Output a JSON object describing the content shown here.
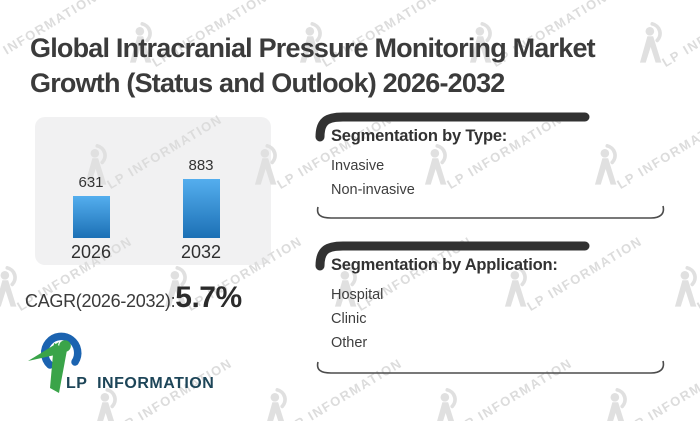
{
  "title": {
    "line1": "Global Intracranial Pressure Monitoring Market",
    "line2": "Growth (Status and Outlook) 2026-2032"
  },
  "chart_data": {
    "type": "bar",
    "categories": [
      "2026",
      "2032"
    ],
    "values": [
      631,
      883
    ],
    "title": "",
    "xlabel": "",
    "ylabel": "",
    "data_labels": [
      "631",
      "883"
    ],
    "legend": [],
    "grid": false,
    "bar_color_top": "#54aeee",
    "bar_color_bottom": "#1c70b5"
  },
  "cagr": {
    "label": "CAGR(2026-2032):",
    "value": "5.7%"
  },
  "segmentation_type": {
    "heading": "Segmentation by Type:",
    "items": [
      "Invasive",
      "Non-invasive"
    ]
  },
  "segmentation_application": {
    "heading": "Segmentation by Application:",
    "items": [
      "Hospital",
      "Clinic",
      "Other"
    ]
  },
  "logo": {
    "text": "LP INFORMATION"
  },
  "watermark": {
    "text": "LP INFORMATION"
  },
  "colors": {
    "background": "#ffffff",
    "title_text": "#3b3b3b",
    "panel_bg": "#f1f1f2",
    "bar_top": "#54aeee",
    "bar_bottom": "#1c70b5",
    "bracket_dark": "#323232",
    "logo_blue": "#1b63b0",
    "logo_green": "#3aa449",
    "logo_text": "#1d4558",
    "watermark_gray": "#dcdcdc"
  }
}
